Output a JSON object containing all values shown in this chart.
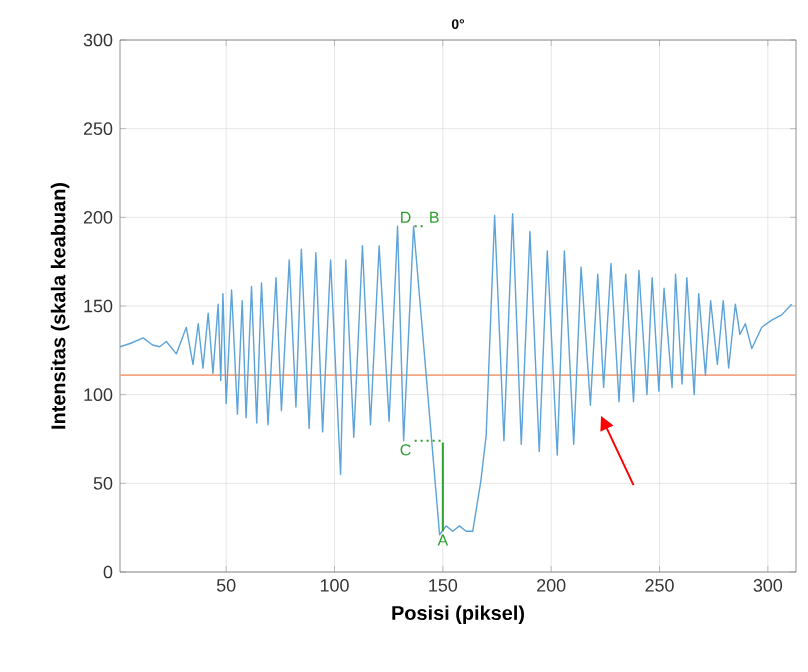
{
  "chart_data": {
    "type": "line",
    "title": "0°",
    "xlabel": "Posisi (piksel)",
    "ylabel": "Intensitas (skala keabuan)",
    "xlim": [
      1,
      313
    ],
    "ylim": [
      0,
      300
    ],
    "xticks": [
      50,
      100,
      150,
      200,
      250,
      300
    ],
    "yticks": [
      0,
      50,
      100,
      150,
      200,
      250,
      300
    ],
    "grid": true,
    "series": [
      {
        "color": "#5ba3d9",
        "x": [
          1,
          6,
          11.7,
          16,
          19.3,
          22.4,
          27,
          31.6,
          34.7,
          37.1,
          39.3,
          41.7,
          43.9,
          46.3,
          47.5,
          48.5,
          50,
          52.5,
          55.2,
          57.4,
          59.2,
          61.7,
          64.1,
          66.3,
          69.3,
          73,
          75.5,
          79.1,
          82.2,
          84.7,
          88.3,
          91.4,
          94.5,
          98.2,
          102.8,
          105.2,
          108.9,
          112.9,
          116.6,
          120.6,
          125.2,
          129.1,
          131.9,
          136.5,
          142.3,
          148.5,
          151.5,
          154.6,
          157.7,
          160.7,
          163.8,
          167.5,
          170,
          173.9,
          178.2,
          182.2,
          186.2,
          190.2,
          194.5,
          198.2,
          202.8,
          206.1,
          210.4,
          213.8,
          218.1,
          221.5,
          224.2,
          227.6,
          231.3,
          234.4,
          238,
          240.5,
          244.2,
          246.6,
          249.7,
          252.1,
          255.8,
          257.4,
          260.4,
          262.6,
          266,
          268.1,
          271.2,
          273.6,
          276.7,
          279.4,
          281.9,
          285,
          287.1,
          289.6,
          292.6,
          297.2,
          301.8,
          306.4,
          311
        ],
        "values": [
          127,
          129,
          132,
          128,
          127,
          130,
          123,
          138,
          117,
          140,
          115,
          146,
          112,
          151,
          108,
          157,
          95,
          159,
          89,
          153,
          87,
          161,
          84,
          163,
          83,
          166,
          91,
          176,
          93,
          182,
          81,
          180,
          79,
          176,
          55,
          176,
          76,
          184,
          83,
          184,
          85,
          195,
          74,
          195,
          111,
          21,
          26,
          23,
          26,
          23,
          23,
          51,
          77,
          201,
          74,
          202,
          72,
          192,
          68,
          181,
          66,
          181,
          72,
          172,
          94,
          168,
          104,
          174,
          96,
          168,
          96,
          170,
          100,
          166,
          102,
          160,
          104,
          168,
          106,
          166,
          100,
          157,
          111,
          153,
          117,
          153,
          115,
          151,
          134,
          140,
          126,
          138,
          142,
          145,
          151
        ]
      },
      {
        "color": "#2ca02c",
        "x": [
          150,
          150
        ],
        "values": [
          73,
          23
        ]
      },
      {
        "color": "#2ca02c",
        "line_style": "dotted",
        "x": [
          137,
          150
        ],
        "values": [
          74,
          74
        ]
      },
      {
        "color": "#2ca02c",
        "line_style": "dotted",
        "x": [
          137,
          142
        ],
        "values": [
          195,
          195
        ]
      }
    ],
    "ref_lines": [
      {
        "axis": "y",
        "value": 111,
        "color": "#f4a582"
      }
    ],
    "annotations": [
      {
        "text": "A",
        "x": 150,
        "y": 23
      },
      {
        "text": "C",
        "x": 137,
        "y": 74
      },
      {
        "text": "D",
        "x": 137,
        "y": 195
      },
      {
        "text": "B",
        "x": 142,
        "y": 195
      }
    ]
  }
}
